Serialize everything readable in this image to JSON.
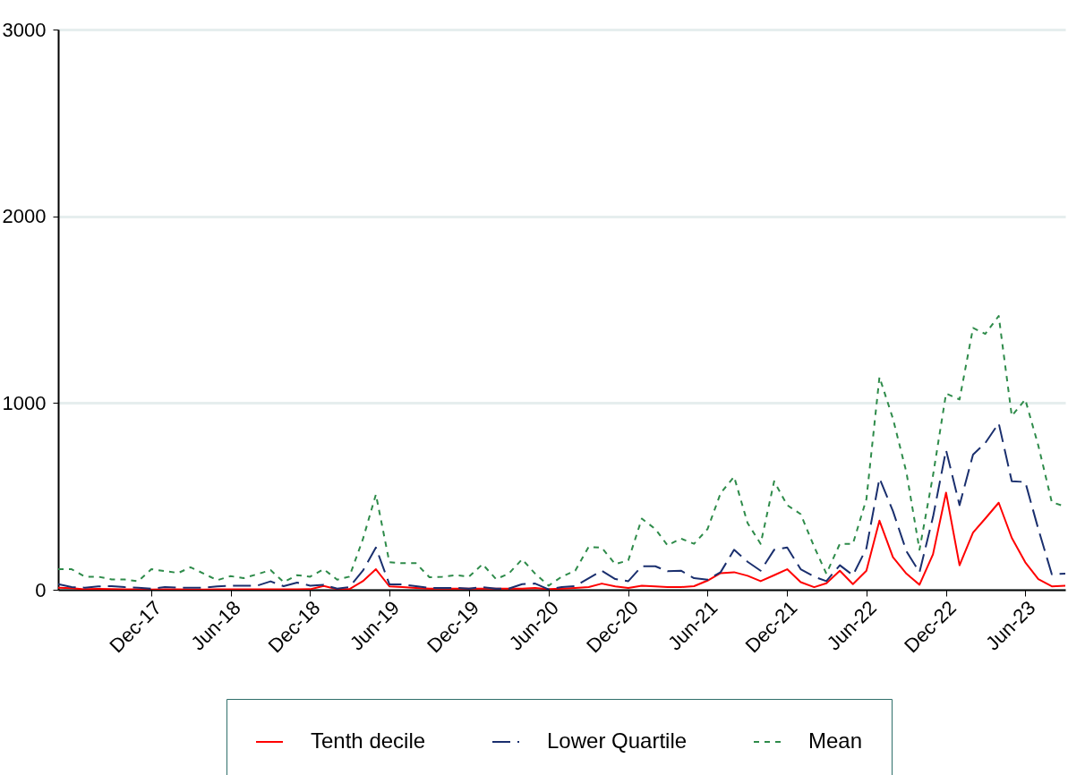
{
  "chart_data": {
    "type": "line",
    "x": [
      "2017-05",
      "2017-06",
      "2017-07",
      "2017-08",
      "2017-09",
      "2017-10",
      "2017-11",
      "2017-12",
      "2018-01",
      "2018-02",
      "2018-03",
      "2018-04",
      "2018-05",
      "2018-06",
      "2018-07",
      "2018-08",
      "2018-09",
      "2018-10",
      "2018-11",
      "2018-12",
      "2019-01",
      "2019-02",
      "2019-03",
      "2019-04",
      "2019-05",
      "2019-06",
      "2019-07",
      "2019-08",
      "2019-09",
      "2019-10",
      "2019-11",
      "2019-12",
      "2020-01",
      "2020-02",
      "2020-03",
      "2020-04",
      "2020-05",
      "2020-06",
      "2020-07",
      "2020-08",
      "2020-09",
      "2020-10",
      "2020-11",
      "2020-12",
      "2021-01",
      "2021-02",
      "2021-03",
      "2021-04",
      "2021-05",
      "2021-06",
      "2021-07",
      "2021-08",
      "2021-09",
      "2021-10",
      "2021-11",
      "2021-12",
      "2022-01",
      "2022-02",
      "2022-03",
      "2022-04",
      "2022-05",
      "2022-06",
      "2022-07",
      "2022-08",
      "2022-09",
      "2022-10",
      "2022-11",
      "2022-12",
      "2023-01",
      "2023-02",
      "2023-03",
      "2023-04",
      "2023-05",
      "2023-06",
      "2023-07",
      "2023-08",
      "2023-09"
    ],
    "series": [
      {
        "name": "Tenth decile",
        "color": "#ff0000",
        "line_style": "solid",
        "values": [
          11,
          8,
          3,
          5,
          3,
          2,
          2,
          1,
          2,
          2,
          1,
          1,
          2,
          2,
          2,
          2,
          2,
          2,
          2,
          3,
          20,
          3,
          3,
          46,
          110,
          18,
          14,
          10,
          6,
          6,
          6,
          6,
          6,
          6,
          6,
          6,
          10,
          3,
          6,
          10,
          14,
          33,
          18,
          10,
          22,
          18,
          14,
          14,
          19,
          49,
          89,
          94,
          75,
          46,
          78,
          110,
          41,
          14,
          35,
          102,
          30,
          102,
          370,
          174,
          86,
          27,
          190,
          520,
          131,
          306,
          381,
          466,
          278,
          147,
          57,
          18,
          22
        ]
      },
      {
        "name": "Lower Quartile",
        "color": "#1a2f6e",
        "line_style": "dashed",
        "values": [
          30,
          14,
          11,
          18,
          19,
          14,
          11,
          6,
          14,
          11,
          11,
          11,
          18,
          22,
          22,
          22,
          45,
          19,
          38,
          22,
          26,
          6,
          14,
          102,
          226,
          29,
          29,
          19,
          10,
          10,
          10,
          6,
          14,
          6,
          6,
          30,
          33,
          2,
          14,
          19,
          62,
          102,
          57,
          46,
          126,
          126,
          99,
          102,
          62,
          54,
          94,
          214,
          150,
          102,
          214,
          226,
          110,
          70,
          46,
          131,
          78,
          222,
          597,
          421,
          206,
          94,
          389,
          748,
          453,
          724,
          785,
          892,
          581,
          577,
          325,
          83,
          86
        ]
      },
      {
        "name": "Mean",
        "color": "#2e8b4a",
        "line_style": "dotted",
        "values": [
          110,
          110,
          70,
          70,
          55,
          55,
          46,
          110,
          100,
          90,
          120,
          86,
          51,
          73,
          62,
          83,
          105,
          41,
          78,
          70,
          110,
          54,
          70,
          270,
          510,
          147,
          142,
          142,
          67,
          70,
          78,
          70,
          137,
          57,
          86,
          163,
          86,
          22,
          70,
          102,
          230,
          225,
          137,
          158,
          381,
          325,
          238,
          274,
          246,
          325,
          517,
          605,
          357,
          246,
          581,
          453,
          405,
          230,
          86,
          246,
          246,
          485,
          1139,
          916,
          628,
          214,
          612,
          1051,
          1019,
          1402,
          1370,
          1466,
          931,
          1019,
          772,
          469,
          445
        ]
      }
    ],
    "xlim": [
      "2017-05",
      "2023-09"
    ],
    "xticks": [
      {
        "value": "2017-12",
        "label": "Dec-17"
      },
      {
        "value": "2018-06",
        "label": "Jun-18"
      },
      {
        "value": "2018-12",
        "label": "Dec-18"
      },
      {
        "value": "2019-06",
        "label": "Jun-19"
      },
      {
        "value": "2019-12",
        "label": "Dec-19"
      },
      {
        "value": "2020-06",
        "label": "Jun-20"
      },
      {
        "value": "2020-12",
        "label": "Dec-20"
      },
      {
        "value": "2021-06",
        "label": "Jun-21"
      },
      {
        "value": "2021-12",
        "label": "Dec-21"
      },
      {
        "value": "2022-06",
        "label": "Jun-22"
      },
      {
        "value": "2022-12",
        "label": "Dec-22"
      },
      {
        "value": "2023-06",
        "label": "Jun-23"
      }
    ],
    "ylim": [
      0,
      3000
    ],
    "yticks": [
      0,
      1000,
      2000,
      3000
    ],
    "grid": "y",
    "legend": "bottom"
  }
}
